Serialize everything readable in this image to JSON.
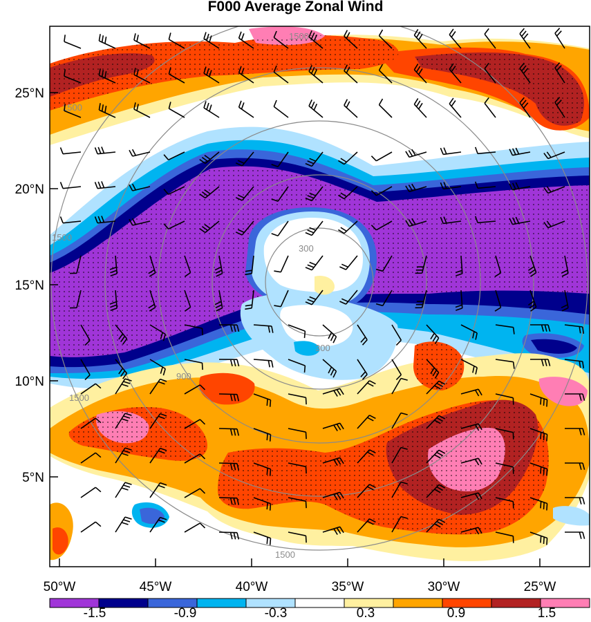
{
  "title": "F000 Average Zonal Wind",
  "lat_labels": [
    "25°N",
    "20°N",
    "15°N",
    "10°N",
    "5°N"
  ],
  "lon_labels": [
    "50°W",
    "45°W",
    "40°W",
    "35°W",
    "30°W",
    "25°W"
  ],
  "colorbar": {
    "colors": [
      "#a035d8",
      "#00008c",
      "#3a66da",
      "#00b4f0",
      "#b0e2ff",
      "#ffffff",
      "#fff0a0",
      "#ffa500",
      "#ff4500",
      "#b22222",
      "#ff7eb4"
    ],
    "labels": [
      "-1.5",
      "-0.9",
      "-0.3",
      "0.3",
      "0.9",
      "1.5"
    ]
  },
  "range_rings": {
    "labels": [
      "300",
      "900",
      "1500"
    ],
    "color": "#8a8a8a"
  }
}
